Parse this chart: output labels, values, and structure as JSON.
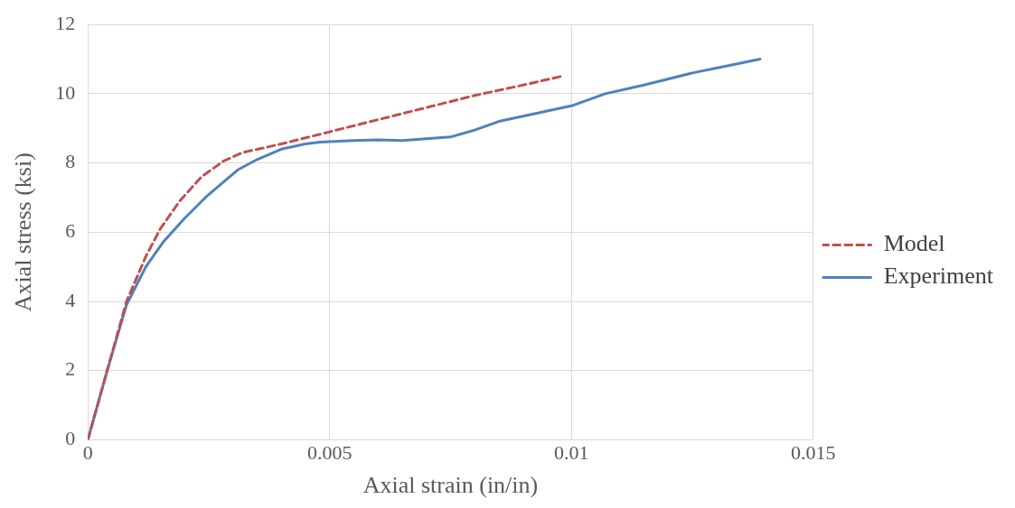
{
  "chart_data": {
    "type": "line",
    "xlabel": "Axial strain (in/in)",
    "ylabel": "Axial stress (ksi)",
    "xlim": [
      0,
      0.015
    ],
    "xticks": [
      0,
      0.005,
      0.01,
      0.015
    ],
    "ylim": [
      0,
      12
    ],
    "yticks": [
      0,
      2,
      4,
      6,
      8,
      10,
      12
    ],
    "grid": true,
    "legend": "right",
    "marker": "none",
    "series": [
      {
        "name": "Model",
        "color": "#c0504d",
        "line_style": "dashed",
        "x": [
          0,
          0.0004,
          0.0008,
          0.0012,
          0.0015,
          0.0019,
          0.00235,
          0.0028,
          0.0032,
          0.004,
          0.005,
          0.006,
          0.007,
          0.008,
          0.009,
          0.00978
        ],
        "values": [
          0,
          2,
          4,
          5.3,
          6.1,
          6.9,
          7.6,
          8.05,
          8.3,
          8.55,
          8.9,
          9.25,
          9.6,
          9.95,
          10.25,
          10.5
        ]
      },
      {
        "name": "Experiment",
        "color": "#4f81bd",
        "line_style": "solid",
        "x": [
          0,
          0.0004,
          0.0008,
          0.0012,
          0.00155,
          0.002,
          0.00243,
          0.0031,
          0.0035,
          0.004,
          0.0045,
          0.0048,
          0.0055,
          0.006,
          0.0065,
          0.007,
          0.0075,
          0.008,
          0.0085,
          0.009,
          0.0095,
          0.01,
          0.0107,
          0.0115,
          0.0125,
          0.0132,
          0.0139
        ],
        "values": [
          0,
          2,
          3.9,
          5,
          5.7,
          6.4,
          7,
          7.8,
          8.1,
          8.4,
          8.55,
          8.6,
          8.65,
          8.67,
          8.65,
          8.7,
          8.75,
          8.95,
          9.2,
          9.35,
          9.5,
          9.65,
          10,
          10.25,
          10.6,
          10.8,
          11
        ]
      }
    ]
  }
}
